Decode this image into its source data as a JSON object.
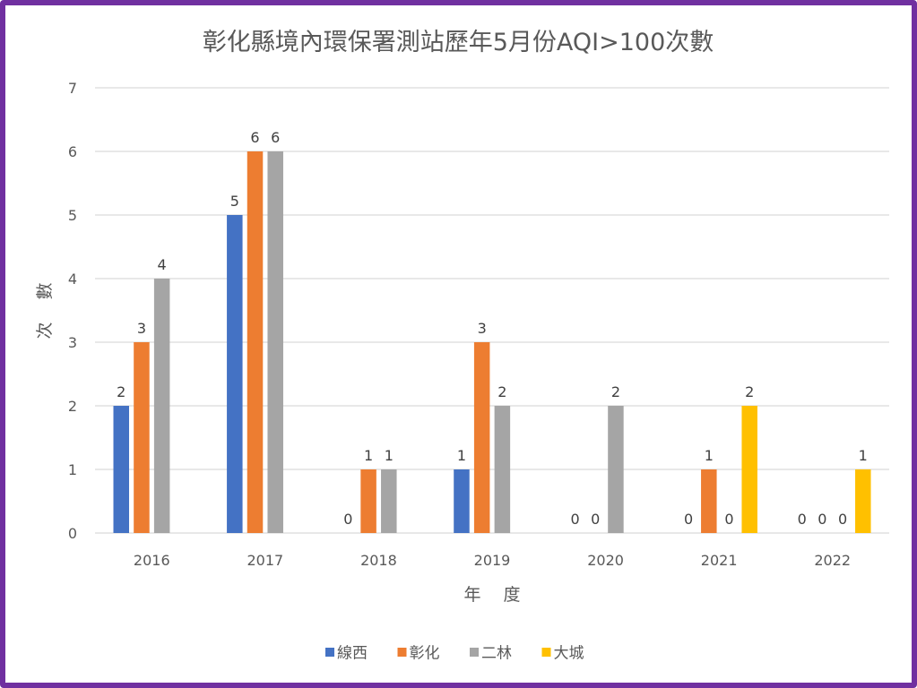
{
  "chart_data": {
    "type": "bar",
    "title": "彰化縣境內環保署測站歷年5月份AQI>100次數",
    "xlabel": "年 度",
    "ylabel": "次 數",
    "ylim": [
      0,
      7
    ],
    "yticks": [
      0,
      1,
      2,
      3,
      4,
      5,
      6,
      7
    ],
    "grid": true,
    "legend_position": "bottom",
    "categories": [
      "2016",
      "2017",
      "2018",
      "2019",
      "2020",
      "2021",
      "2022"
    ],
    "series": [
      {
        "name": "線西",
        "color": "#4472c4",
        "values": [
          2,
          5,
          0,
          1,
          0,
          0,
          0
        ]
      },
      {
        "name": "彰化",
        "color": "#ed7d31",
        "values": [
          3,
          6,
          1,
          3,
          0,
          1,
          0
        ]
      },
      {
        "name": "二林",
        "color": "#a5a5a5",
        "values": [
          4,
          6,
          1,
          2,
          2,
          0,
          0
        ]
      },
      {
        "name": "大城",
        "color": "#ffc000",
        "values": [
          null,
          null,
          null,
          null,
          null,
          2,
          1
        ]
      }
    ]
  },
  "frame_color": "#7030a0"
}
